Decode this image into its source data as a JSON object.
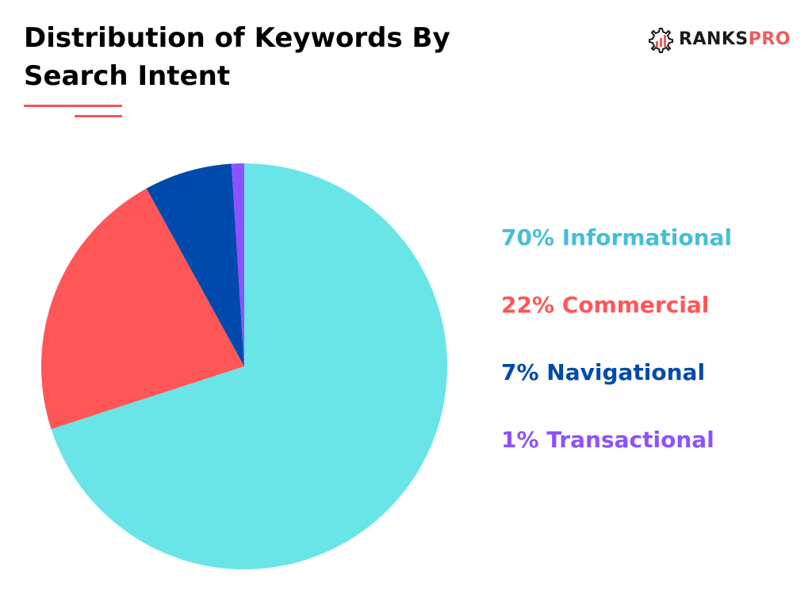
{
  "header": {
    "title_line1": "Distribution of Keywords By",
    "title_line2": "Search Intent"
  },
  "brand": {
    "name_part1": "RANKS",
    "name_part2": "PRO",
    "icon": "gear-chart-icon"
  },
  "colors": {
    "accent": "#f25a5a",
    "informational": "#6ae5e7",
    "commercial": "#ff5757",
    "navigational": "#004aad",
    "transactional": "#8c52ff",
    "informational_text": "#45bfd6"
  },
  "chart_data": {
    "type": "pie",
    "title": "Distribution of Keywords By Search Intent",
    "slices": [
      {
        "label": "Informational",
        "value": 70,
        "text": "70% Informational",
        "color": "#6ae5e7",
        "text_color": "#45bfd6"
      },
      {
        "label": "Commercial",
        "value": 22,
        "text": "22% Commercial",
        "color": "#ff5757",
        "text_color": "#ff5757"
      },
      {
        "label": "Navigational",
        "value": 7,
        "text": "7% Navigational",
        "color": "#004aad",
        "text_color": "#004aad"
      },
      {
        "label": "Transactional",
        "value": 1,
        "text": "1% Transactional",
        "color": "#8c52ff",
        "text_color": "#8c52ff"
      }
    ],
    "start_angle_deg": 0,
    "direction": "clockwise",
    "legend_placement": "right"
  }
}
